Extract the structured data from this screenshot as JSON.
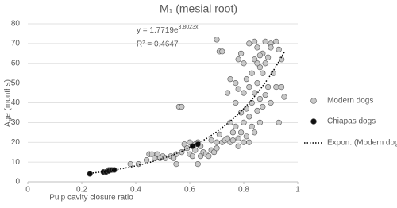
{
  "chart_data": {
    "type": "scatter",
    "title": "M₁ (mesial root)",
    "x_label": "Pulp cavity closure ratio",
    "y_label": "Age (months)",
    "xlim": [
      0,
      1
    ],
    "xticks": [
      0,
      0.2,
      0.4,
      0.6,
      0.8,
      1
    ],
    "ylim": [
      0,
      80
    ],
    "yticks": [
      0,
      10,
      20,
      30,
      40,
      50,
      60,
      70,
      80
    ],
    "grid": true,
    "series": [
      {
        "name": "Modern dogs",
        "color": "#c8c8c8",
        "x": [
          0.29,
          0.3,
          0.31,
          0.32,
          0.38,
          0.41,
          0.44,
          0.45,
          0.46,
          0.47,
          0.48,
          0.5,
          0.51,
          0.53,
          0.55,
          0.55,
          0.57,
          0.58,
          0.59,
          0.6,
          0.61,
          0.62,
          0.63,
          0.63,
          0.64,
          0.64,
          0.65,
          0.66,
          0.67,
          0.68,
          0.68,
          0.69,
          0.7,
          0.7,
          0.71,
          0.72,
          0.73,
          0.74,
          0.75,
          0.75,
          0.76,
          0.76,
          0.77,
          0.77,
          0.78,
          0.78,
          0.79,
          0.79,
          0.8,
          0.8,
          0.8,
          0.81,
          0.81,
          0.81,
          0.82,
          0.82,
          0.82,
          0.83,
          0.83,
          0.83,
          0.84,
          0.84,
          0.84,
          0.85,
          0.85,
          0.85,
          0.86,
          0.86,
          0.86,
          0.87,
          0.87,
          0.87,
          0.88,
          0.88,
          0.88,
          0.89,
          0.89,
          0.9,
          0.9,
          0.91,
          0.92,
          0.92,
          0.93,
          0.94,
          0.95,
          0.93,
          0.94,
          0.56,
          0.57,
          0.7,
          0.71,
          0.72,
          0.78,
          0.82,
          0.75,
          0.74,
          0.77,
          0.78,
          0.8,
          0.79,
          0.85,
          0.86,
          0.9,
          0.84,
          0.62,
          0.6,
          0.54,
          0.49
        ],
        "values": [
          5,
          6,
          6,
          6,
          9,
          9,
          11,
          14,
          14,
          12,
          14,
          13,
          12,
          13,
          14,
          9,
          15,
          19,
          17,
          14,
          13,
          16,
          9,
          20,
          13,
          18,
          15,
          14,
          13,
          21,
          16,
          15,
          17,
          20,
          24,
          20,
          21,
          22,
          20,
          30,
          21,
          25,
          28,
          40,
          18,
          22,
          25,
          35,
          20,
          30,
          45,
          23,
          37,
          52,
          20,
          33,
          48,
          28,
          40,
          55,
          25,
          45,
          62,
          36,
          50,
          68,
          30,
          42,
          58,
          38,
          55,
          65,
          44,
          60,
          71,
          48,
          63,
          70,
          40,
          55,
          71,
          48,
          67,
          48,
          43,
          30,
          62,
          38,
          38,
          72,
          66,
          66,
          62,
          70,
          52,
          45,
          50,
          47,
          60,
          65,
          60,
          64,
          68,
          71,
          19,
          20,
          12,
          12
        ]
      },
      {
        "name": "Chiapas dogs",
        "color": "#111111",
        "x": [
          0.23,
          0.28,
          0.29,
          0.3,
          0.31,
          0.32,
          0.61,
          0.63
        ],
        "values": [
          4,
          5,
          5,
          5.5,
          6,
          6,
          18,
          19
        ]
      }
    ],
    "trend": {
      "name": "Expon. (Modern dogs)",
      "a": 1.7719,
      "b": 3.8023
    },
    "equation": "y = 1.7719e",
    "equation_exponent": "3.8023x",
    "r_squared": "R² = 0.4647"
  }
}
